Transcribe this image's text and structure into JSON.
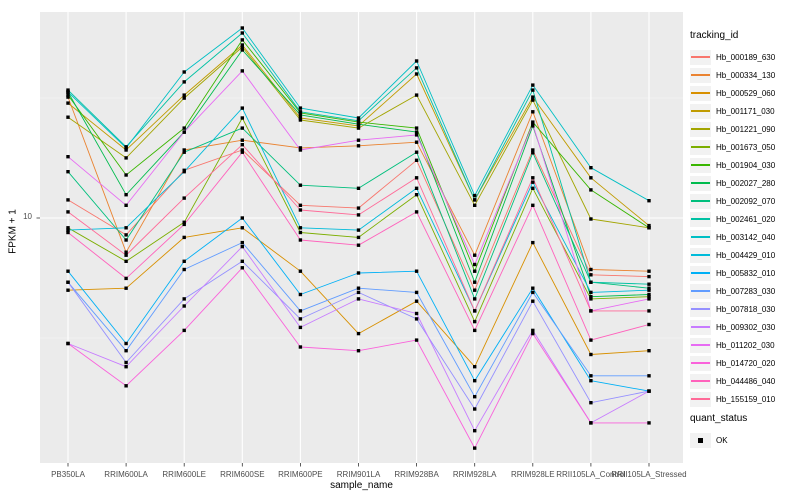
{
  "figure": {
    "panel_bg": "#EBEBEB",
    "grid_major_color": "#FFFFFF",
    "grid_minor_color": "#F5F5F5",
    "tick_color": "#333333",
    "axis_text_color": "#4D4D4D",
    "point_color": "#000000"
  },
  "axes": {
    "x_title": "sample_name",
    "y_title": "FPKM + 1",
    "y_tick_labels": [
      "10"
    ]
  },
  "legend": {
    "tracking_title": "tracking_id",
    "quant_title": "quant_status",
    "quant_items": [
      {
        "label": "OK",
        "symbol": "black-square"
      }
    ]
  },
  "chart_data": {
    "type": "line",
    "title": "",
    "xlabel": "sample_name",
    "ylabel": "FPKM + 1",
    "y_scale": "log10",
    "y_tick_values": [
      10
    ],
    "y_minor_gridline_values": [
      3.162,
      31.62
    ],
    "ylim_approx": [
      1,
      70
    ],
    "grid": true,
    "legend_position": "right",
    "point_marker": {
      "shape": "square",
      "color": "#000000",
      "meaning": "quant_status OK"
    },
    "categories": [
      "PB350LA",
      "RRIM600LA",
      "RRIM600LE",
      "RRIM600SE",
      "RRIM600PE",
      "RRIM901LA",
      "RRIM928BA",
      "RRIM928LA",
      "RRIM928LE",
      "RRII105LA_Control",
      "RRII105LA_Stressed"
    ],
    "series": [
      {
        "name": "Hb_000189_630",
        "color": "#F8766D",
        "values": [
          11.9,
          8.5,
          15.8,
          19.2,
          11.3,
          11.0,
          17.4,
          5.0,
          19.2,
          5.8,
          5.7
        ]
      },
      {
        "name": "Hb_000334_130",
        "color": "#EA8331",
        "values": [
          31.9,
          7.2,
          19.2,
          21.1,
          19.6,
          20.0,
          20.7,
          7.0,
          27.7,
          6.1,
          6.0
        ]
      },
      {
        "name": "Hb_000529_060",
        "color": "#D89000",
        "values": [
          5.0,
          5.1,
          8.3,
          9.1,
          6.0,
          3.3,
          4.5,
          2.4,
          7.9,
          2.7,
          2.8
        ]
      },
      {
        "name": "Hb_001171_030",
        "color": "#C09B00",
        "values": [
          30.1,
          19.2,
          32.5,
          52.6,
          26.1,
          24.2,
          39.8,
          11.9,
          31.9,
          14.7,
          9.3
        ]
      },
      {
        "name": "Hb_001221_090",
        "color": "#A3A500",
        "values": [
          26.3,
          17.8,
          31.6,
          51.6,
          25.6,
          23.7,
          32.5,
          11.3,
          31.0,
          9.9,
          9.1
        ]
      },
      {
        "name": "Hb_001673_050",
        "color": "#7CAE00",
        "values": [
          9.1,
          6.6,
          9.6,
          26.1,
          8.7,
          8.3,
          12.5,
          3.7,
          13.3,
          4.6,
          4.7
        ]
      },
      {
        "name": "Hb_001904_030",
        "color": "#39B600",
        "values": [
          32.5,
          15.1,
          23.7,
          55.2,
          27.4,
          25.1,
          23.7,
          6.0,
          25.1,
          13.1,
          9.1
        ]
      },
      {
        "name": "Hb_002027_280",
        "color": "#00BB4E",
        "values": [
          33.5,
          12.5,
          22.8,
          50.1,
          26.9,
          24.6,
          22.8,
          5.4,
          24.2,
          4.7,
          4.8
        ]
      },
      {
        "name": "Hb_002092_070",
        "color": "#00BF7D",
        "values": [
          15.6,
          8.1,
          18.8,
          23.7,
          13.7,
          13.3,
          18.8,
          4.6,
          18.7,
          5.4,
          5.1
        ]
      },
      {
        "name": "Hb_002461_020",
        "color": "#00C1A3",
        "values": [
          34.1,
          19.8,
          36.9,
          59.0,
          27.7,
          25.4,
          42.2,
          11.9,
          34.1,
          5.4,
          5.3
        ]
      },
      {
        "name": "Hb_003142_040",
        "color": "#00BFC4",
        "values": [
          33.5,
          19.6,
          40.6,
          61.9,
          28.7,
          26.1,
          45.1,
          12.4,
          35.8,
          16.2,
          11.8
        ]
      },
      {
        "name": "Hb_004429_010",
        "color": "#00BBDA",
        "values": [
          8.9,
          9.1,
          15.6,
          28.7,
          9.1,
          8.9,
          13.3,
          4.1,
          14.1,
          4.9,
          5.0
        ]
      },
      {
        "name": "Hb_005832_010",
        "color": "#00B0F6",
        "values": [
          6.0,
          3.0,
          6.6,
          10.0,
          4.8,
          5.9,
          6.0,
          2.1,
          5.1,
          2.1,
          1.9
        ]
      },
      {
        "name": "Hb_007283_030",
        "color": "#619CFF",
        "values": [
          5.4,
          2.8,
          6.1,
          7.9,
          4.1,
          5.1,
          4.9,
          1.8,
          4.9,
          2.2,
          2.2
        ]
      },
      {
        "name": "Hb_007818_030",
        "color": "#9590FF",
        "values": [
          5.4,
          2.5,
          4.6,
          6.6,
          3.8,
          4.9,
          3.8,
          1.6,
          4.5,
          1.7,
          1.9
        ]
      },
      {
        "name": "Hb_009302_030",
        "color": "#C77CFF",
        "values": [
          3.0,
          2.4,
          4.3,
          7.6,
          3.5,
          4.6,
          4.0,
          1.3,
          3.4,
          1.4,
          1.9
        ]
      },
      {
        "name": "Hb_011202_030",
        "color": "#E76BF3",
        "values": [
          18.0,
          11.3,
          22.8,
          41.0,
          19.2,
          21.1,
          22.2,
          6.4,
          24.6,
          4.1,
          4.6
        ]
      },
      {
        "name": "Hb_014720_020",
        "color": "#FA62DB",
        "values": [
          3.0,
          2.0,
          3.4,
          6.2,
          2.9,
          2.8,
          3.1,
          1.1,
          3.3,
          1.4,
          1.4
        ]
      },
      {
        "name": "Hb_044486_040",
        "color": "#FF62BC",
        "values": [
          8.7,
          5.6,
          9.4,
          18.8,
          8.1,
          7.7,
          10.6,
          3.4,
          11.3,
          3.1,
          3.6
        ]
      },
      {
        "name": "Hb_155159_010",
        "color": "#FF6A98",
        "values": [
          10.6,
          7.0,
          12.1,
          20.2,
          10.8,
          10.3,
          14.7,
          4.1,
          14.7,
          4.1,
          4.1
        ]
      }
    ]
  }
}
